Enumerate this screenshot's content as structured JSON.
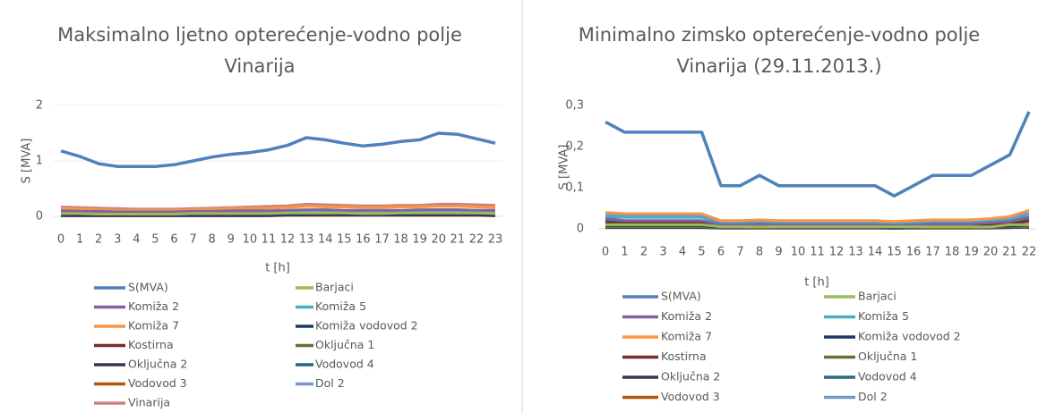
{
  "chart_data": [
    {
      "type": "line",
      "title": [
        "Maksimalno ljetno opterećenje-vodno polje",
        "Vinarija"
      ],
      "y_label": "S [MVA]",
      "x_label": "t [h]",
      "categories": [
        "0",
        "1",
        "2",
        "3",
        "4",
        "5",
        "6",
        "7",
        "8",
        "9",
        "10",
        "11",
        "12",
        "13",
        "14",
        "15",
        "16",
        "17",
        "18",
        "19",
        "20",
        "21",
        "22",
        "23"
      ],
      "ylim": [
        0,
        2
      ],
      "yticks": [
        0,
        1,
        2
      ],
      "grid": true,
      "series": [
        {
          "name": "S(MVA)",
          "color": "#4f81bd",
          "values": [
            1.18,
            1.08,
            0.95,
            0.9,
            0.9,
            0.9,
            0.93,
            1.0,
            1.07,
            1.12,
            1.15,
            1.2,
            1.28,
            1.42,
            1.38,
            1.32,
            1.27,
            1.3,
            1.35,
            1.38,
            1.5,
            1.48,
            1.4,
            1.32
          ]
        },
        {
          "name": "Barjaci",
          "color": "#9bbb59",
          "values": [
            0.05,
            0.05,
            0.04,
            0.04,
            0.04,
            0.04,
            0.04,
            0.05,
            0.05,
            0.05,
            0.05,
            0.05,
            0.06,
            0.06,
            0.06,
            0.06,
            0.05,
            0.05,
            0.06,
            0.06,
            0.06,
            0.06,
            0.06,
            0.05
          ]
        },
        {
          "name": "Komiža 2",
          "color": "#8064a2",
          "values": [
            0.1,
            0.09,
            0.09,
            0.08,
            0.08,
            0.08,
            0.08,
            0.09,
            0.09,
            0.1,
            0.1,
            0.1,
            0.11,
            0.12,
            0.12,
            0.11,
            0.11,
            0.11,
            0.11,
            0.12,
            0.12,
            0.12,
            0.11,
            0.11
          ]
        },
        {
          "name": "Komiža 5",
          "color": "#4bacc6",
          "values": [
            0.07,
            0.06,
            0.06,
            0.05,
            0.05,
            0.05,
            0.05,
            0.06,
            0.06,
            0.07,
            0.07,
            0.07,
            0.08,
            0.09,
            0.09,
            0.08,
            0.08,
            0.08,
            0.08,
            0.09,
            0.1,
            0.1,
            0.09,
            0.08
          ]
        },
        {
          "name": "Komiža 7",
          "color": "#f79646",
          "values": [
            0.14,
            0.13,
            0.12,
            0.11,
            0.11,
            0.11,
            0.11,
            0.12,
            0.13,
            0.14,
            0.14,
            0.15,
            0.16,
            0.18,
            0.17,
            0.17,
            0.16,
            0.16,
            0.17,
            0.17,
            0.18,
            0.18,
            0.17,
            0.16
          ]
        },
        {
          "name": "Komiža vodovod 2",
          "color": "#1f3864",
          "values": [
            0.03,
            0.03,
            0.03,
            0.03,
            0.03,
            0.03,
            0.03,
            0.03,
            0.03,
            0.03,
            0.03,
            0.03,
            0.04,
            0.04,
            0.04,
            0.04,
            0.04,
            0.04,
            0.04,
            0.04,
            0.04,
            0.04,
            0.04,
            0.03
          ]
        },
        {
          "name": "Kostirna",
          "color": "#772c2a",
          "values": [
            0.02,
            0.02,
            0.02,
            0.02,
            0.02,
            0.02,
            0.02,
            0.02,
            0.02,
            0.02,
            0.02,
            0.02,
            0.03,
            0.03,
            0.03,
            0.03,
            0.03,
            0.03,
            0.03,
            0.03,
            0.03,
            0.03,
            0.03,
            0.02
          ]
        },
        {
          "name": "Oključna 1",
          "color": "#5f7530",
          "values": [
            0.04,
            0.04,
            0.03,
            0.03,
            0.03,
            0.03,
            0.03,
            0.04,
            0.04,
            0.04,
            0.04,
            0.04,
            0.05,
            0.05,
            0.05,
            0.05,
            0.04,
            0.04,
            0.05,
            0.05,
            0.05,
            0.05,
            0.05,
            0.04
          ]
        },
        {
          "name": "Oključna 2",
          "color": "#3f3151",
          "values": [
            0.01,
            0.01,
            0.01,
            0.01,
            0.01,
            0.01,
            0.01,
            0.01,
            0.01,
            0.01,
            0.01,
            0.01,
            0.02,
            0.02,
            0.02,
            0.02,
            0.02,
            0.02,
            0.02,
            0.02,
            0.02,
            0.02,
            0.02,
            0.01
          ]
        },
        {
          "name": "Vodovod 4",
          "color": "#276a7c",
          "values": [
            0.06,
            0.05,
            0.05,
            0.04,
            0.04,
            0.04,
            0.04,
            0.05,
            0.05,
            0.06,
            0.06,
            0.06,
            0.07,
            0.07,
            0.07,
            0.07,
            0.06,
            0.06,
            0.07,
            0.07,
            0.08,
            0.08,
            0.07,
            0.07
          ]
        },
        {
          "name": "Vodovod 3",
          "color": "#b65708",
          "values": [
            0.02,
            0.02,
            0.02,
            0.02,
            0.02,
            0.02,
            0.02,
            0.02,
            0.02,
            0.02,
            0.02,
            0.02,
            0.02,
            0.02,
            0.02,
            0.02,
            0.02,
            0.02,
            0.02,
            0.02,
            0.02,
            0.02,
            0.02,
            0.02
          ]
        },
        {
          "name": "Dol 2",
          "color": "#729aca",
          "values": [
            0.09,
            0.08,
            0.08,
            0.07,
            0.07,
            0.07,
            0.07,
            0.08,
            0.08,
            0.09,
            0.09,
            0.09,
            0.1,
            0.11,
            0.11,
            0.1,
            0.1,
            0.1,
            0.1,
            0.11,
            0.12,
            0.12,
            0.11,
            0.1
          ]
        },
        {
          "name": "Vinarija",
          "color": "#d0807d",
          "values": [
            0.17,
            0.16,
            0.15,
            0.14,
            0.13,
            0.13,
            0.13,
            0.14,
            0.15,
            0.16,
            0.17,
            0.18,
            0.19,
            0.22,
            0.21,
            0.2,
            0.19,
            0.19,
            0.2,
            0.2,
            0.22,
            0.22,
            0.21,
            0.2
          ]
        }
      ]
    },
    {
      "type": "line",
      "title": [
        "Minimalno zimsko opterećenje-vodno polje",
        "Vinarija (29.11.2013.)"
      ],
      "y_label": "S [MVA]",
      "x_label": "t [h]",
      "categories": [
        "0",
        "1",
        "2",
        "3",
        "4",
        "5",
        "6",
        "7",
        "8",
        "9",
        "10",
        "11",
        "12",
        "13",
        "14",
        "15",
        "16",
        "17",
        "18",
        "19",
        "20",
        "21",
        "22"
      ],
      "ylim": [
        0,
        0.3
      ],
      "yticks": [
        0,
        {
          "value": 0.1,
          "label": "0,1"
        },
        {
          "value": 0.2,
          "label": "0,2"
        },
        {
          "value": 0.3,
          "label": "0,3"
        }
      ],
      "grid": false,
      "series": [
        {
          "name": "S(MVA)",
          "color": "#4f81bd",
          "values": [
            0.26,
            0.235,
            0.235,
            0.235,
            0.235,
            0.235,
            0.105,
            0.105,
            0.13,
            0.105,
            0.105,
            0.105,
            0.105,
            0.105,
            0.105,
            0.08,
            0.105,
            0.13,
            0.13,
            0.13,
            0.155,
            0.18,
            0.285
          ]
        },
        {
          "name": "Barjaci",
          "color": "#9bbb59",
          "values": [
            0.01,
            0.01,
            0.01,
            0.01,
            0.01,
            0.01,
            0.005,
            0.005,
            0.005,
            0.005,
            0.005,
            0.005,
            0.005,
            0.005,
            0.005,
            0.005,
            0.005,
            0.005,
            0.005,
            0.005,
            0.005,
            0.01,
            0.01
          ]
        },
        {
          "name": "Komiža 2",
          "color": "#8064a2",
          "values": [
            0.025,
            0.02,
            0.02,
            0.02,
            0.02,
            0.02,
            0.01,
            0.01,
            0.012,
            0.01,
            0.01,
            0.01,
            0.01,
            0.01,
            0.01,
            0.008,
            0.01,
            0.012,
            0.012,
            0.012,
            0.015,
            0.018,
            0.028
          ]
        },
        {
          "name": "Komiža 5",
          "color": "#4bacc6",
          "values": [
            0.03,
            0.028,
            0.028,
            0.028,
            0.028,
            0.028,
            0.012,
            0.012,
            0.015,
            0.012,
            0.012,
            0.012,
            0.012,
            0.012,
            0.012,
            0.01,
            0.012,
            0.015,
            0.015,
            0.015,
            0.018,
            0.022,
            0.032
          ]
        },
        {
          "name": "Komiža 7",
          "color": "#f79646",
          "values": [
            0.04,
            0.037,
            0.037,
            0.037,
            0.037,
            0.037,
            0.02,
            0.02,
            0.022,
            0.02,
            0.02,
            0.02,
            0.02,
            0.02,
            0.02,
            0.018,
            0.02,
            0.022,
            0.022,
            0.022,
            0.025,
            0.03,
            0.045
          ]
        },
        {
          "name": "Komiža vodovod 2",
          "color": "#1f3864",
          "values": [
            0.008,
            0.008,
            0.008,
            0.008,
            0.008,
            0.008,
            0.004,
            0.004,
            0.005,
            0.004,
            0.004,
            0.004,
            0.004,
            0.004,
            0.004,
            0.003,
            0.004,
            0.005,
            0.005,
            0.005,
            0.006,
            0.007,
            0.01
          ]
        },
        {
          "name": "Kostirna",
          "color": "#772c2a",
          "values": [
            0.015,
            0.013,
            0.013,
            0.013,
            0.013,
            0.013,
            0.006,
            0.006,
            0.008,
            0.006,
            0.006,
            0.006,
            0.006,
            0.006,
            0.006,
            0.005,
            0.006,
            0.008,
            0.008,
            0.008,
            0.01,
            0.012,
            0.018
          ]
        },
        {
          "name": "Oključna 1",
          "color": "#5f7530",
          "values": [
            0.005,
            0.005,
            0.005,
            0.005,
            0.005,
            0.005,
            0.003,
            0.003,
            0.003,
            0.003,
            0.003,
            0.003,
            0.003,
            0.003,
            0.003,
            0.002,
            0.003,
            0.003,
            0.003,
            0.003,
            0.004,
            0.005,
            0.006
          ]
        },
        {
          "name": "Oključna 2",
          "color": "#3f3151",
          "values": [
            0.003,
            0.003,
            0.003,
            0.003,
            0.003,
            0.003,
            0.002,
            0.002,
            0.002,
            0.002,
            0.002,
            0.002,
            0.002,
            0.002,
            0.002,
            0.001,
            0.002,
            0.002,
            0.002,
            0.002,
            0.002,
            0.003,
            0.004
          ]
        },
        {
          "name": "Vodovod 4",
          "color": "#276a7c",
          "values": [
            0.02,
            0.018,
            0.018,
            0.018,
            0.018,
            0.018,
            0.008,
            0.008,
            0.01,
            0.008,
            0.008,
            0.008,
            0.008,
            0.008,
            0.008,
            0.006,
            0.008,
            0.01,
            0.01,
            0.01,
            0.012,
            0.014,
            0.022
          ]
        },
        {
          "name": "Vodovod 3",
          "color": "#b65708",
          "values": [
            0.004,
            0.004,
            0.004,
            0.004,
            0.004,
            0.004,
            0.002,
            0.002,
            0.002,
            0.002,
            0.002,
            0.002,
            0.002,
            0.002,
            0.002,
            0.002,
            0.002,
            0.002,
            0.002,
            0.002,
            0.003,
            0.003,
            0.005
          ]
        },
        {
          "name": "Dol 2",
          "color": "#729aca",
          "values": [
            0.035,
            0.032,
            0.032,
            0.032,
            0.032,
            0.032,
            0.016,
            0.016,
            0.018,
            0.016,
            0.016,
            0.016,
            0.016,
            0.016,
            0.016,
            0.014,
            0.016,
            0.018,
            0.018,
            0.018,
            0.021,
            0.026,
            0.038
          ]
        }
      ]
    }
  ]
}
